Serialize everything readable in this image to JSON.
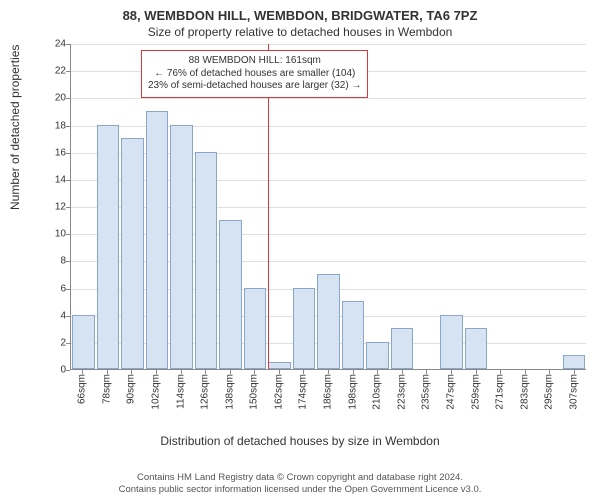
{
  "header": {
    "title1": "88, WEMBDON HILL, WEMBDON, BRIDGWATER, TA6 7PZ",
    "title2": "Size of property relative to detached houses in Wembdon"
  },
  "axes": {
    "ylabel": "Number of detached properties",
    "xlabel": "Distribution of detached houses by size in Wembdon",
    "ylim": [
      0,
      24
    ],
    "ytick_step": 2,
    "grid_color": "#e0e0e0",
    "axis_color": "#888888",
    "label_fontsize": 12,
    "tick_fontsize": 10
  },
  "chart": {
    "type": "histogram",
    "background_color": "#ffffff",
    "bar_fill": "#d6e3f3",
    "bar_border": "#8aa6c9",
    "bar_width": 0.92,
    "categories": [
      "66sqm",
      "78sqm",
      "90sqm",
      "102sqm",
      "114sqm",
      "126sqm",
      "138sqm",
      "150sqm",
      "162sqm",
      "174sqm",
      "186sqm",
      "198sqm",
      "210sqm",
      "223sqm",
      "235sqm",
      "247sqm",
      "259sqm",
      "271sqm",
      "283sqm",
      "295sqm",
      "307sqm"
    ],
    "values": [
      4,
      18,
      17,
      19,
      18,
      16,
      11,
      6,
      0.5,
      6,
      7,
      5,
      2,
      3,
      0,
      4,
      3,
      0,
      0,
      0,
      1
    ]
  },
  "marker": {
    "position_index": 8,
    "line_color": "#d73a3a",
    "box_border": "#d73a3a",
    "lines": [
      "88 WEMBDON HILL: 161sqm",
      "← 76% of detached houses are smaller (104)",
      "23% of semi-detached houses are larger (32) →"
    ]
  },
  "footnote": {
    "line1": "Contains HM Land Registry data © Crown copyright and database right 2024.",
    "line2": "Contains public sector information licensed under the Open Government Licence v3.0."
  }
}
